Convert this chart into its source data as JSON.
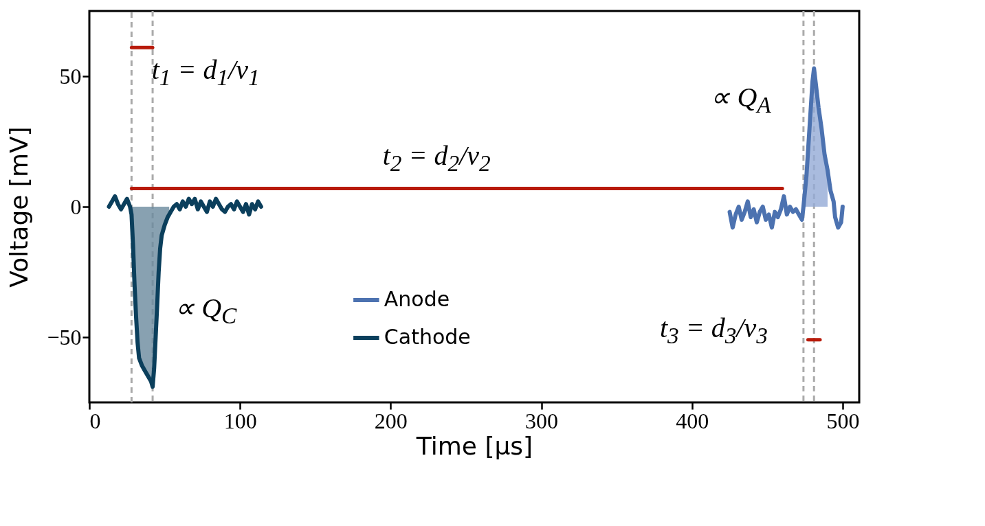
{
  "chart_data": {
    "type": "line",
    "xlabel": "Time [μs]",
    "ylabel": "Voltage [mV]",
    "xlim": [
      0,
      511
    ],
    "ylim": [
      -75,
      75
    ],
    "xticks": [
      0,
      100,
      200,
      300,
      400,
      500
    ],
    "yticks": [
      -50,
      0,
      50
    ],
    "grid": false,
    "legend": "bottom",
    "line_style": "solid",
    "marker": "none",
    "series": [
      {
        "name": "Anode",
        "color": "#4c72b0",
        "x": [
          425,
          427,
          429,
          431,
          433,
          435,
          437,
          439,
          441,
          443,
          445,
          447,
          449,
          451,
          453,
          455,
          457,
          459,
          461,
          463,
          465,
          467,
          469,
          471,
          473,
          474,
          476,
          478,
          480,
          481,
          482,
          484,
          486,
          488,
          490,
          492,
          494,
          495,
          497,
          499,
          500
        ],
        "values": [
          -2,
          -8,
          -3,
          0,
          -5,
          -2,
          2,
          -4,
          -1,
          -6,
          -2,
          0,
          -5,
          -3,
          -8,
          -2,
          -4,
          -1,
          4,
          -3,
          0,
          -2,
          -1,
          -3,
          -5,
          0,
          12,
          30,
          48,
          53,
          48,
          38,
          30,
          20,
          14,
          6,
          2,
          -4,
          -8,
          -6,
          0
        ]
      },
      {
        "name": "Cathode",
        "color": "#0b3f5c",
        "x": [
          13,
          15,
          17,
          19,
          21,
          23,
          25,
          27,
          28,
          29,
          30,
          31,
          32,
          33,
          35,
          37,
          39,
          41,
          42,
          43,
          44,
          45,
          46,
          47,
          48,
          50,
          52,
          54,
          56,
          58,
          60,
          62,
          64,
          66,
          68,
          70,
          72,
          74,
          76,
          78,
          80,
          82,
          84,
          86,
          88,
          90,
          92,
          94,
          96,
          98,
          100,
          102,
          104,
          106,
          108,
          110,
          112,
          114
        ],
        "values": [
          0,
          2,
          4,
          1,
          -1,
          1,
          3,
          0,
          -3,
          -15,
          -30,
          -42,
          -52,
          -58,
          -61,
          -63,
          -65,
          -67,
          -69,
          -62,
          -50,
          -38,
          -25,
          -16,
          -11,
          -7,
          -4,
          -2,
          0,
          1,
          -1,
          2,
          0,
          3,
          1,
          3,
          -1,
          2,
          0,
          -2,
          2,
          0,
          3,
          1,
          -1,
          -2,
          0,
          1,
          -1,
          2,
          0,
          -2,
          1,
          -3,
          1,
          -1,
          2,
          0
        ]
      },
      {
        "type": "area",
        "color": "#6a8a9e",
        "x": [
          28,
          29,
          30,
          31,
          32,
          33,
          35,
          37,
          39,
          41,
          42,
          43,
          44,
          45,
          46,
          47,
          48,
          50,
          52,
          53
        ],
        "values": [
          -3,
          -15,
          -30,
          -42,
          -52,
          -58,
          -61,
          -63,
          -65,
          -67,
          -69,
          -62,
          -50,
          -38,
          -25,
          -16,
          -11,
          -7,
          -4,
          -3
        ]
      },
      {
        "type": "area",
        "color": "#94aad6",
        "x": [
          474,
          476,
          478,
          480,
          481,
          482,
          484,
          486,
          488,
          490
        ],
        "values": [
          0,
          12,
          30,
          48,
          53,
          48,
          38,
          30,
          20,
          14
        ]
      },
      {
        "color": "#b81a0a",
        "x": [
          28,
          42
        ],
        "values": [
          61,
          61
        ]
      },
      {
        "color": "#b81a0a",
        "x": [
          28,
          460
        ],
        "values": [
          7,
          7
        ]
      },
      {
        "color": "#b81a0a",
        "x": [
          477,
          485
        ],
        "values": [
          -51,
          -51
        ]
      }
    ],
    "ref_lines": [
      {
        "axis": "x",
        "value": 28,
        "color": "#aaaaaa",
        "line_style": "dashed"
      },
      {
        "axis": "x",
        "value": 42,
        "color": "#aaaaaa",
        "line_style": "dashed"
      },
      {
        "axis": "x",
        "value": 474,
        "color": "#aaaaaa",
        "line_style": "dashed"
      },
      {
        "axis": "x",
        "value": 481,
        "color": "#aaaaaa",
        "line_style": "dashed"
      }
    ],
    "annotations": [
      "t$_{1}$ = d$_{1}$/v$_{1}$",
      "t$_{2}$ = d$_{2}$/v$_{2}$",
      "∝ Q$_{A}$",
      "∝ Q$_{C}$",
      "t$_{3}$ = d$_{3}$/v$_{3}$"
    ]
  }
}
